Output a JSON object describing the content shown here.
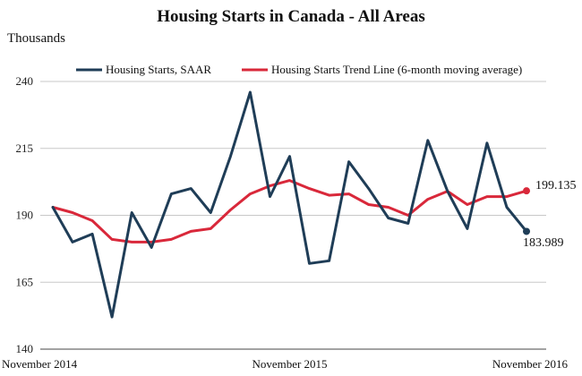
{
  "chart_data": {
    "type": "line",
    "title": "Housing Starts in Canada - All Areas",
    "ylabel": "Thousands",
    "ylim": [
      140,
      245
    ],
    "yticks": [
      140,
      165,
      190,
      215,
      240
    ],
    "grid": "horizontal",
    "legend_position": "top",
    "x_tick_labels": [
      "November 2014",
      "November 2015",
      "November 2016"
    ],
    "x_tick_indices": [
      0,
      12,
      24
    ],
    "series": [
      {
        "name": "Housing Starts, SAAR",
        "color": "#1f3d57",
        "values": [
          193,
          180,
          183,
          152,
          191,
          178,
          198,
          200,
          191,
          212,
          236,
          197,
          212,
          172,
          173,
          210,
          200,
          189,
          187,
          218,
          199,
          185,
          217,
          193,
          183.989
        ]
      },
      {
        "name": "Housing Starts Trend Line (6-month moving average)",
        "color": "#d9283a",
        "values": [
          193,
          191,
          188,
          181,
          180,
          180,
          181,
          184,
          185,
          192,
          198,
          201,
          203,
          200,
          197.5,
          198,
          194,
          193,
          190,
          196,
          199,
          194,
          197,
          197,
          199.135
        ]
      }
    ],
    "annotations": [
      {
        "series": 1,
        "text": "199.135"
      },
      {
        "series": 0,
        "text": "183.989"
      }
    ]
  }
}
